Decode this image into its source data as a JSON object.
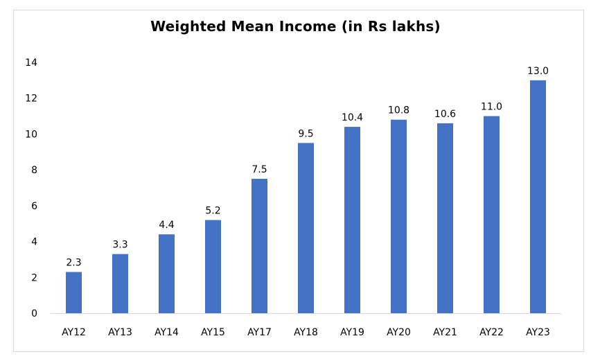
{
  "chart_data": {
    "type": "bar",
    "title": "Weighted Mean Income (in Rs lakhs)",
    "categories": [
      "AY12",
      "AY13",
      "AY14",
      "AY15",
      "AY17",
      "AY18",
      "AY19",
      "AY20",
      "AY21",
      "AY22",
      "AY23"
    ],
    "values": [
      2.3,
      3.3,
      4.4,
      5.2,
      7.5,
      9.5,
      10.4,
      10.8,
      10.6,
      11.0,
      13.0
    ],
    "data_labels": [
      "2.3",
      "3.3",
      "4.4",
      "5.2",
      "7.5",
      "9.5",
      "10.4",
      "10.8",
      "10.6",
      "11.0",
      "13.0"
    ],
    "y_ticks": [
      "0",
      "2",
      "4",
      "6",
      "8",
      "10",
      "12",
      "14"
    ],
    "ylim": [
      0,
      14
    ],
    "xlabel": "",
    "ylabel": "",
    "grid": false,
    "legend": "none",
    "bar_color": "#4472C4",
    "axis_color": "#d9d9d9"
  }
}
